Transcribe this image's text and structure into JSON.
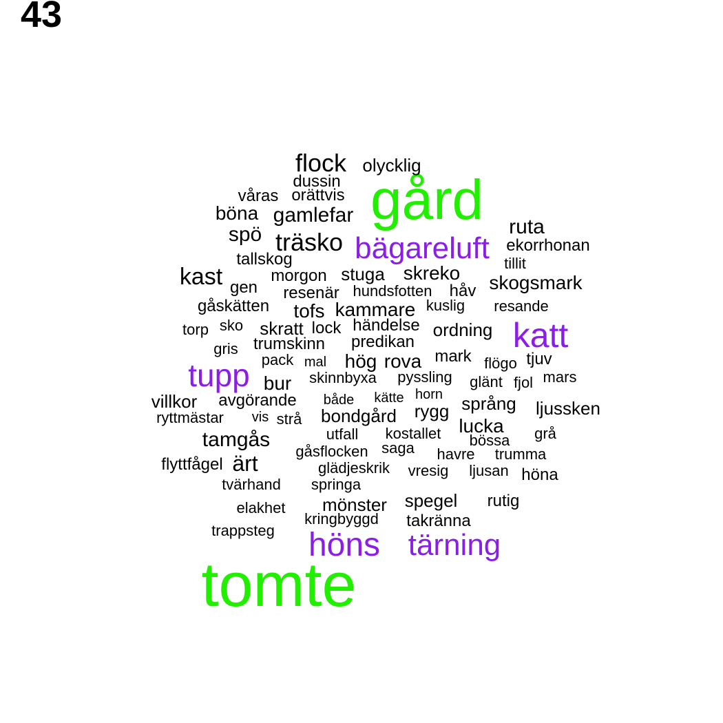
{
  "page_number": "43",
  "colors": {
    "large": "#22ee00",
    "medium": "#8a1ee6",
    "small": "#000000"
  },
  "words": [
    {
      "text": "gård",
      "size": 3
    },
    {
      "text": "tomte",
      "size": 3
    },
    {
      "text": "bägareluft",
      "size": 2
    },
    {
      "text": "katt",
      "size": 2
    },
    {
      "text": "tupp",
      "size": 2
    },
    {
      "text": "höns",
      "size": 2
    },
    {
      "text": "tärning",
      "size": 2
    },
    {
      "text": "flock",
      "size": 1
    },
    {
      "text": "olycklig",
      "size": 1
    },
    {
      "text": "dussin",
      "size": 1
    },
    {
      "text": "våras",
      "size": 1
    },
    {
      "text": "orättvis",
      "size": 1
    },
    {
      "text": "böna",
      "size": 1
    },
    {
      "text": "gamlefar",
      "size": 1
    },
    {
      "text": "ruta",
      "size": 1
    },
    {
      "text": "spö",
      "size": 1
    },
    {
      "text": "träsko",
      "size": 1
    },
    {
      "text": "ekorrhonan",
      "size": 1
    },
    {
      "text": "tallskog",
      "size": 1
    },
    {
      "text": "tillit",
      "size": 1
    },
    {
      "text": "kast",
      "size": 1
    },
    {
      "text": "morgon",
      "size": 1
    },
    {
      "text": "stuga",
      "size": 1
    },
    {
      "text": "skreko",
      "size": 1
    },
    {
      "text": "skogsmark",
      "size": 1
    },
    {
      "text": "gen",
      "size": 1
    },
    {
      "text": "resenär",
      "size": 1
    },
    {
      "text": "hundsfotten",
      "size": 1
    },
    {
      "text": "håv",
      "size": 1
    },
    {
      "text": "gåskätten",
      "size": 1
    },
    {
      "text": "tofs",
      "size": 1
    },
    {
      "text": "kammare",
      "size": 1
    },
    {
      "text": "kuslig",
      "size": 1
    },
    {
      "text": "resande",
      "size": 1
    },
    {
      "text": "torp",
      "size": 1
    },
    {
      "text": "sko",
      "size": 1
    },
    {
      "text": "skratt",
      "size": 1
    },
    {
      "text": "lock",
      "size": 1
    },
    {
      "text": "händelse",
      "size": 1
    },
    {
      "text": "ordning",
      "size": 1
    },
    {
      "text": "gris",
      "size": 1
    },
    {
      "text": "trumskinn",
      "size": 1
    },
    {
      "text": "predikan",
      "size": 1
    },
    {
      "text": "pack",
      "size": 1
    },
    {
      "text": "mal",
      "size": 1
    },
    {
      "text": "hög",
      "size": 1
    },
    {
      "text": "rova",
      "size": 1
    },
    {
      "text": "mark",
      "size": 1
    },
    {
      "text": "flögo",
      "size": 1
    },
    {
      "text": "tjuv",
      "size": 1
    },
    {
      "text": "bur",
      "size": 1
    },
    {
      "text": "skinnbyxa",
      "size": 1
    },
    {
      "text": "pyssling",
      "size": 1
    },
    {
      "text": "glänt",
      "size": 1
    },
    {
      "text": "fjol",
      "size": 1
    },
    {
      "text": "mars",
      "size": 1
    },
    {
      "text": "villkor",
      "size": 1
    },
    {
      "text": "avgörande",
      "size": 1
    },
    {
      "text": "både",
      "size": 1
    },
    {
      "text": "kätte",
      "size": 1
    },
    {
      "text": "horn",
      "size": 1
    },
    {
      "text": "språng",
      "size": 1
    },
    {
      "text": "ryttmästar",
      "size": 1
    },
    {
      "text": "vis",
      "size": 1
    },
    {
      "text": "strå",
      "size": 1
    },
    {
      "text": "bondgård",
      "size": 1
    },
    {
      "text": "rygg",
      "size": 1
    },
    {
      "text": "ljussken",
      "size": 1
    },
    {
      "text": "lucka",
      "size": 1
    },
    {
      "text": "tamgås",
      "size": 1
    },
    {
      "text": "utfall",
      "size": 1
    },
    {
      "text": "kostallet",
      "size": 1
    },
    {
      "text": "bössa",
      "size": 1
    },
    {
      "text": "grå",
      "size": 1
    },
    {
      "text": "gåsflocken",
      "size": 1
    },
    {
      "text": "saga",
      "size": 1
    },
    {
      "text": "havre",
      "size": 1
    },
    {
      "text": "trumma",
      "size": 1
    },
    {
      "text": "flyttfågel",
      "size": 1
    },
    {
      "text": "ärt",
      "size": 1
    },
    {
      "text": "glädjeskrik",
      "size": 1
    },
    {
      "text": "vresig",
      "size": 1
    },
    {
      "text": "ljusan",
      "size": 1
    },
    {
      "text": "höna",
      "size": 1
    },
    {
      "text": "tvärhand",
      "size": 1
    },
    {
      "text": "springa",
      "size": 1
    },
    {
      "text": "mönster",
      "size": 1
    },
    {
      "text": "spegel",
      "size": 1
    },
    {
      "text": "rutig",
      "size": 1
    },
    {
      "text": "elakhet",
      "size": 1
    },
    {
      "text": "kringbyggd",
      "size": 1
    },
    {
      "text": "takränna",
      "size": 1
    },
    {
      "text": "trappsteg",
      "size": 1
    }
  ]
}
